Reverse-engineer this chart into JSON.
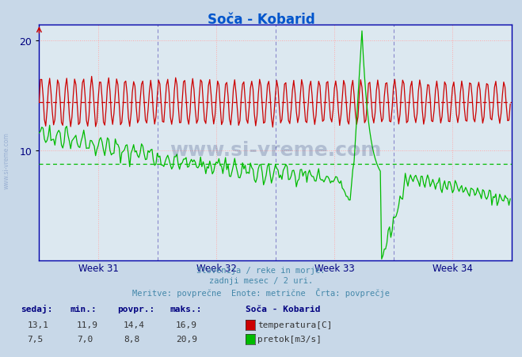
{
  "title": "Soča - Kobarid",
  "title_color": "#0055cc",
  "bg_color": "#c8d8e8",
  "plot_bg_color": "#dce8f0",
  "grid_color": "#ffaaaa",
  "temp_color": "#cc0000",
  "flow_color": "#00bb00",
  "avg_temp": 14.4,
  "avg_flow": 8.8,
  "week_labels": [
    "Week 31",
    "Week 32",
    "Week 33",
    "Week 34"
  ],
  "ylim_min": 0,
  "ylim_max": 21,
  "yticks": [
    10,
    20
  ],
  "subtitle1": "Slovenija / reke in morje.",
  "subtitle2": "zadnji mesec / 2 uri.",
  "subtitle3": "Meritve: povprečne  Enote: metrične  Črta: povprečje",
  "legend_title": "Soča - Kobarid",
  "legend_temp": "temperatura[C]",
  "legend_flow": "pretok[m3/s]",
  "table_headers": [
    "sedaj:",
    "min.:",
    "povpr.:",
    "maks.:"
  ],
  "table_row1": [
    "13,1",
    "11,9",
    "14,4",
    "16,9"
  ],
  "table_row2": [
    "7,5",
    "7,0",
    "8,8",
    "20,9"
  ],
  "n_points": 360,
  "n_days": 28,
  "spike_day": 19.2,
  "spike_value": 20.9
}
